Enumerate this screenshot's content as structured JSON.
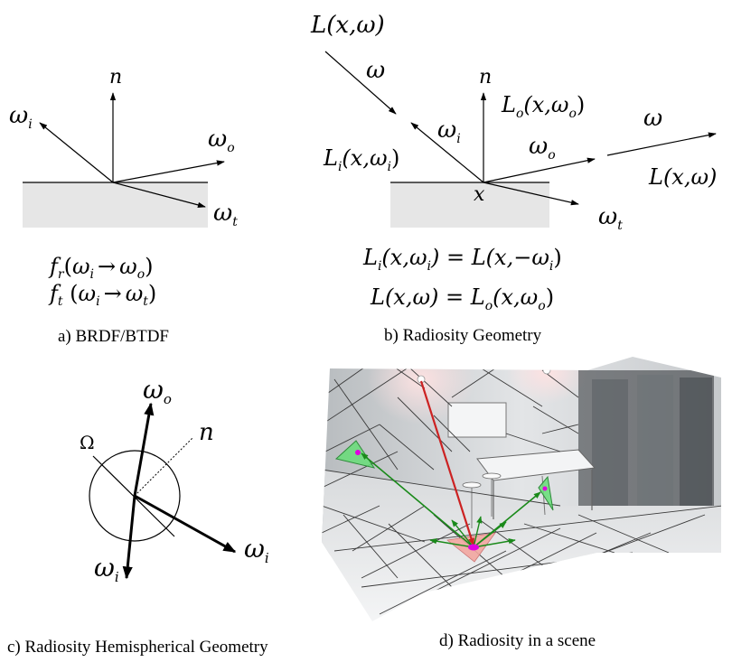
{
  "panel_a": {
    "normal": "n",
    "w": "ω",
    "sub_i": "i",
    "sub_o": "o",
    "sub_t": "t",
    "brdf": {
      "f": "f",
      "r": "r",
      "open": "(",
      "arrow": "→",
      "close": ")"
    },
    "btdf": {
      "f": "f",
      "t": "t",
      "open": " (",
      "arrow": "→",
      "close": ")"
    },
    "caption": "a) BRDF/BTDF"
  },
  "panel_b": {
    "top_label": "L(x,ω)",
    "omega": "ω",
    "normal": "n",
    "L": "L",
    "args_x": "(x,",
    "close": ")",
    "x": "x",
    "right_label": "L(x,ω)",
    "sub_i": "i",
    "sub_o": "o",
    "sub_t": "t",
    "eq1": {
      "lhs_args": "(x,",
      "eq": ") = L(x,−",
      "close": ")"
    },
    "eq2": {
      "lhs": "L(x,ω) = L",
      "args": "(x,",
      "close": ")"
    },
    "caption": "b) Radiosity Geometry"
  },
  "panel_c": {
    "big_omega": "Ω",
    "normal": "n",
    "w": "ω",
    "sub_o": "o",
    "sub_i": "i",
    "caption": "c) Radiosity Hemispherical Geometry"
  },
  "panel_d": {
    "caption": "d) Radiosity in a scene"
  },
  "colors": {
    "surface_fill": "#e6e6e6",
    "red_ray": "#cc2222",
    "green_ray": "#1a8a1a",
    "patch_green": "#66dd77",
    "patch_pink": "#f2a6a0",
    "magenta_point": "#e000e0"
  }
}
